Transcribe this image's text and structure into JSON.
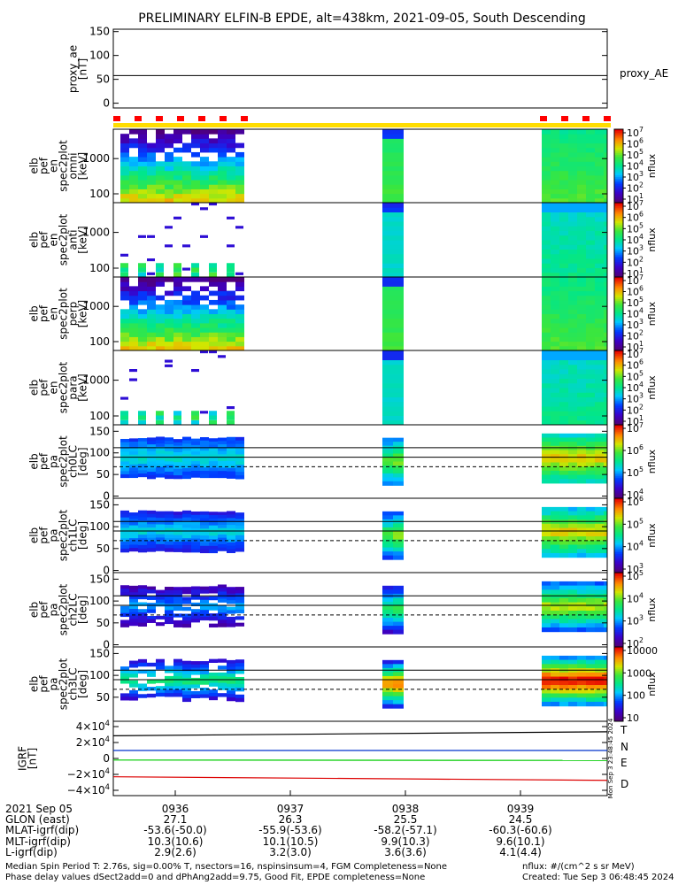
{
  "title": "PRELIMINARY ELFIN-B EPDE, alt=438km, 2021-09-05, South Descending",
  "panels": {
    "proxy_ae": {
      "ylabel": [
        "proxy_ae",
        "[nT]"
      ],
      "yticks": [
        "150",
        "100",
        "50",
        "0"
      ],
      "right_label": "proxy_AE",
      "ae_value": 58,
      "ylim": [
        -10,
        155
      ]
    },
    "en_omni": {
      "ylabel": [
        "elb",
        "pef",
        "en",
        "spec2plot",
        "omni",
        "[keV]"
      ],
      "yticks": [
        "1000",
        "100"
      ],
      "cbar_ticks": [
        "10^7",
        "10^6",
        "10^5",
        "10^4",
        "10^3",
        "10^2",
        "10^1"
      ],
      "cbar_label": "nflux"
    },
    "en_anti": {
      "ylabel": [
        "elb",
        "pef",
        "en",
        "spec2plot",
        "anti",
        "[keV]"
      ],
      "yticks": [
        "1000",
        "100"
      ],
      "cbar_ticks": [
        "10^7",
        "10^6",
        "10^5",
        "10^4",
        "10^3",
        "10^2",
        "10^1"
      ],
      "cbar_label": "nflux"
    },
    "en_perp": {
      "ylabel": [
        "elb",
        "pef",
        "en",
        "spec2plot",
        "perp",
        "[keV]"
      ],
      "yticks": [
        "1000",
        "100"
      ],
      "cbar_ticks": [
        "10^7",
        "10^6",
        "10^5",
        "10^4",
        "10^3",
        "10^2",
        "10^1"
      ],
      "cbar_label": "nflux"
    },
    "en_para": {
      "ylabel": [
        "elb",
        "pef",
        "en",
        "spec2plot",
        "para",
        "[keV]"
      ],
      "yticks": [
        "1000",
        "100"
      ],
      "cbar_ticks": [
        "10^7",
        "10^6",
        "10^5",
        "10^4",
        "10^3",
        "10^2",
        "10^1"
      ],
      "cbar_label": "nflux"
    },
    "pa_ch0": {
      "ylabel": [
        "elb",
        "pef",
        "pa",
        "spec2plot",
        "ch0LC",
        "[deg]"
      ],
      "yticks": [
        "150",
        "100",
        "50",
        "0"
      ],
      "cbar_ticks": [
        "10^7",
        "10^6",
        "10^5",
        "10^4"
      ],
      "cbar_label": "nflux"
    },
    "pa_ch1": {
      "ylabel": [
        "elb",
        "pef",
        "pa",
        "spec2plot",
        "ch1LC",
        "[deg]"
      ],
      "yticks": [
        "150",
        "100",
        "50",
        "0"
      ],
      "cbar_ticks": [
        "10^6",
        "10^5",
        "10^4",
        "10^3"
      ],
      "cbar_label": "nflux"
    },
    "pa_ch2": {
      "ylabel": [
        "elb",
        "pef",
        "pa",
        "spec2plot",
        "ch2LC",
        "[deg]"
      ],
      "yticks": [
        "150",
        "100",
        "50",
        "0"
      ],
      "cbar_ticks": [
        "10^5",
        "10^4",
        "10^3",
        "10^2"
      ],
      "cbar_label": "nflux"
    },
    "pa_ch3": {
      "ylabel": [
        "elb",
        "pef",
        "pa",
        "spec2plot",
        "ch3LC",
        "[deg]"
      ],
      "yticks": [
        "150",
        "100",
        "50"
      ],
      "cbar_ticks": [
        "10000",
        "1000",
        "100",
        "10"
      ],
      "cbar_label": "nflux"
    },
    "igrf": {
      "ylabel": [
        "IGRF",
        "[nT]"
      ],
      "yticks": [
        "4×10^4",
        "2×10^4",
        "0",
        "−2×10^4",
        "−4×10^4"
      ],
      "legend": [
        {
          "label": "T",
          "color": "#000000"
        },
        {
          "label": "N",
          "color": "#0033cc"
        },
        {
          "label": "E",
          "color": "#00cc00"
        },
        {
          "label": "D",
          "color": "#dd0000"
        }
      ],
      "stamp": "Mon Sep  3 23:48:45 2024"
    }
  },
  "time_axis": {
    "date": "2021 Sep 05",
    "ticks": [
      "0936",
      "0937",
      "0938",
      "0939"
    ],
    "rows": [
      {
        "label": "GLON (east)",
        "values": [
          "27.1",
          "26.3",
          "25.5",
          "24.5"
        ]
      },
      {
        "label": "MLAT-igrf(dip)",
        "values": [
          "-53.6(-50.0)",
          "-55.9(-53.6)",
          "-58.2(-57.1)",
          "-60.3(-60.6)"
        ]
      },
      {
        "label": "MLT-igrf(dip)",
        "values": [
          "10.3(10.6)",
          "10.1(10.5)",
          "9.9(10.3)",
          "9.6(10.1)"
        ]
      },
      {
        "label": "L-igrf(dip)",
        "values": [
          "2.9(2.6)",
          "3.2(3.0)",
          "3.6(3.6)",
          "4.1(4.4)"
        ]
      }
    ]
  },
  "footer": {
    "line1": "Median Spin Period T: 2.76s, sig=0.00% T, nsectors=16, nspinsinsum=4, FGM Completeness=None",
    "line2": "Phase delay values dSect2add=0 and dPhAng2add=9.75, Good Fit, EPDE completeness=None",
    "units": "nflux: #/(cm^2 s sr MeV)",
    "created": "Created: Tue Sep  3 06:48:45 2024"
  },
  "colors": {
    "bar_yellow": "#ffdd00",
    "bar_red": "#ff0000",
    "frame": "#000000"
  }
}
